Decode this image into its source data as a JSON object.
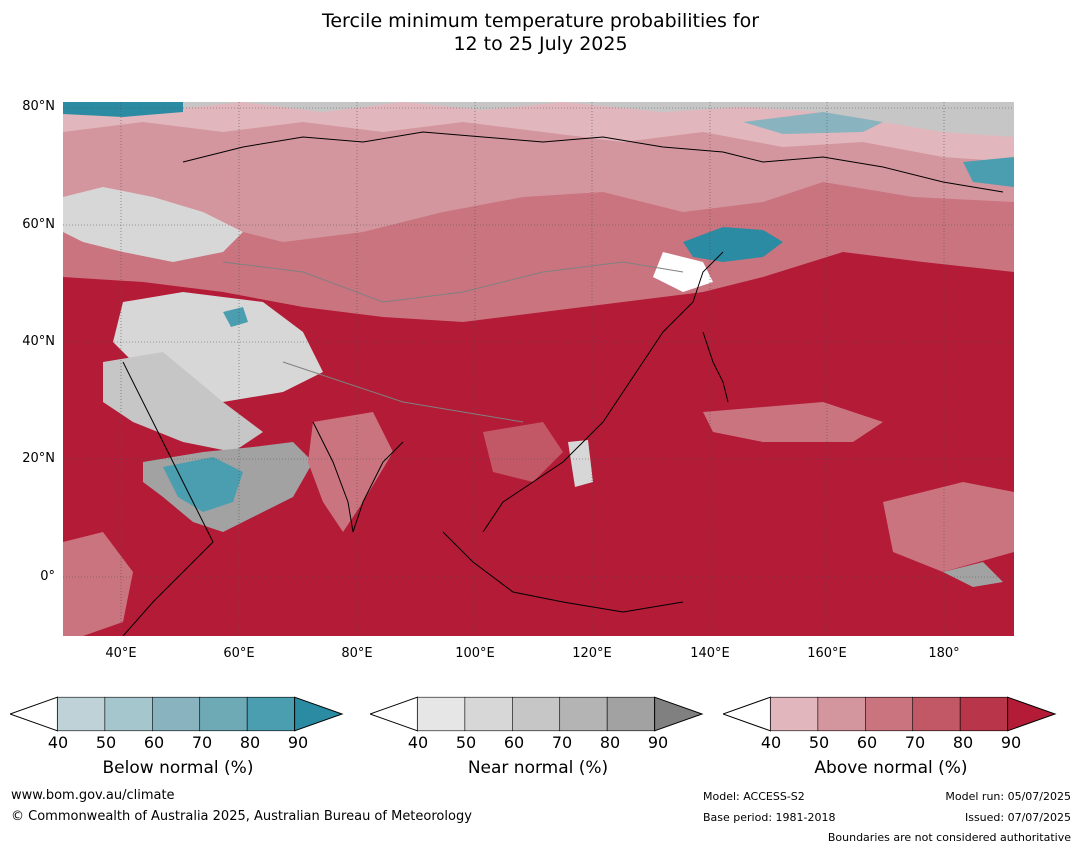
{
  "title": {
    "line1": "Tercile minimum temperature probabilities for",
    "line2": "12 to 25 July 2025"
  },
  "map": {
    "region": "Asia",
    "lat_labels": [
      "80°N",
      "60°N",
      "40°N",
      "20°N",
      "0°"
    ],
    "lon_labels": [
      "40°E",
      "60°E",
      "80°E",
      "100°E",
      "120°E",
      "140°E",
      "160°E",
      "180°"
    ],
    "dominant_category": "Above normal",
    "colors": {
      "ocean_dominant": "#b31b37",
      "coastline": "#000000",
      "border": "#808080",
      "gridline": "#555555"
    }
  },
  "legends": [
    {
      "label": "Below normal (%)",
      "ticks": [
        "40",
        "50",
        "60",
        "70",
        "80",
        "90"
      ],
      "colors": [
        "#ffffff",
        "#bed2d8",
        "#a5c6cc",
        "#88b3bf",
        "#6ea9b6",
        "#4a9eaf",
        "#2a8ba2"
      ]
    },
    {
      "label": "Near normal (%)",
      "ticks": [
        "40",
        "50",
        "60",
        "70",
        "80",
        "90"
      ],
      "colors": [
        "#ffffff",
        "#e6e6e6",
        "#d7d7d7",
        "#c6c6c6",
        "#b4b4b4",
        "#a2a2a2",
        "#808080"
      ]
    },
    {
      "label": "Above normal (%)",
      "ticks": [
        "40",
        "50",
        "60",
        "70",
        "80",
        "90"
      ],
      "colors": [
        "#ffffff",
        "#e1b7bd",
        "#d4969e",
        "#ca747f",
        "#c25866",
        "#b8354a",
        "#b31b37"
      ]
    }
  ],
  "footer": {
    "website": "www.bom.gov.au/climate",
    "copyright": "© Commonwealth of Australia 2025, Australian Bureau of Meteorology",
    "model": "Model: ACCESS-S2",
    "base_period": "Base period: 1981-2018",
    "model_run": "Model run: 05/07/2025",
    "issued": "Issued: 07/07/2025",
    "disclaimer": "Boundaries are not considered authoritative"
  }
}
